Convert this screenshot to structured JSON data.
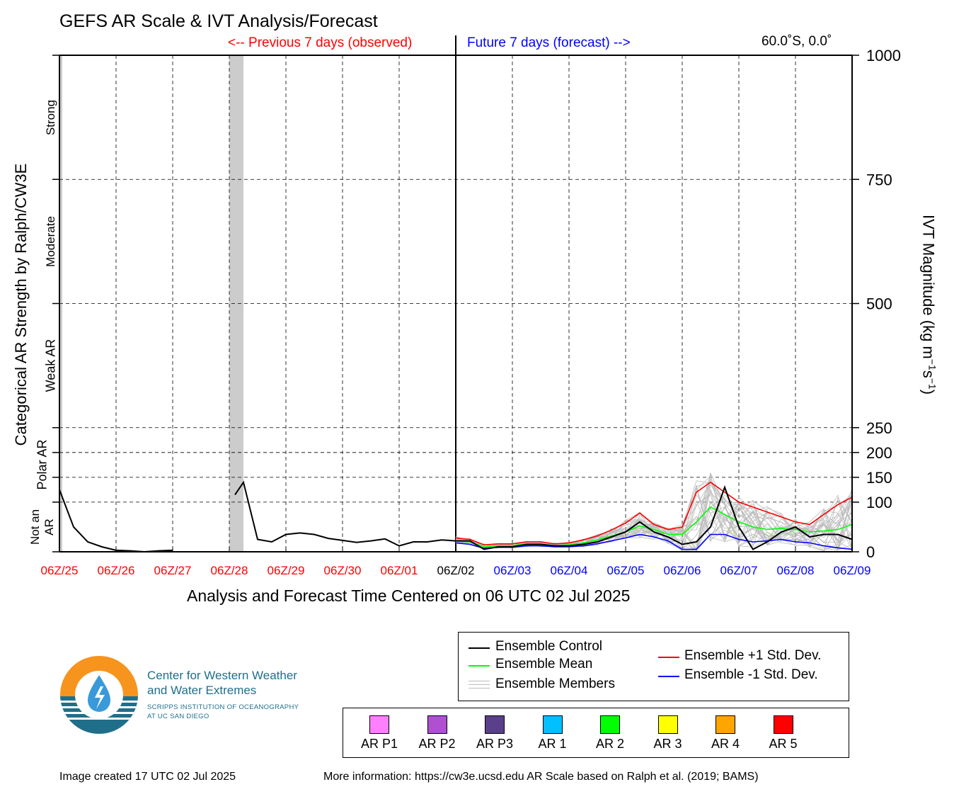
{
  "title": "GEFS AR Scale & IVT Analysis/Forecast",
  "prev_label": "<-- Previous 7 days (observed)",
  "future_label": "Future 7 days (forecast) -->",
  "location": "60.0˚S, 0.0˚",
  "chart_data": {
    "type": "line",
    "xlabel": "Analysis and Forecast Time Centered on 06 UTC 02 Jul 2025",
    "ylabel_left": "Categorical AR Strength by Ralph/CW3E",
    "ylabel_right": "IVT Magnitude (kg m−1s−1)",
    "ylim": [
      0,
      1000
    ],
    "y_ticks": [
      0,
      100,
      150,
      200,
      250,
      500,
      750,
      1000
    ],
    "x_range_days": [
      -7,
      7
    ],
    "x_ticks": [
      {
        "label": "06Z/25",
        "color": "#ff0000"
      },
      {
        "label": "06Z/26",
        "color": "#ff0000"
      },
      {
        "label": "06Z/27",
        "color": "#ff0000"
      },
      {
        "label": "06Z/28",
        "color": "#ff0000"
      },
      {
        "label": "06Z/29",
        "color": "#ff0000"
      },
      {
        "label": "06Z/30",
        "color": "#ff0000"
      },
      {
        "label": "06Z/01",
        "color": "#ff0000"
      },
      {
        "label": "06Z/02",
        "color": "#000000"
      },
      {
        "label": "06Z/03",
        "color": "#0000ff"
      },
      {
        "label": "06Z/04",
        "color": "#0000ff"
      },
      {
        "label": "06Z/05",
        "color": "#0000ff"
      },
      {
        "label": "06Z/06",
        "color": "#0000ff"
      },
      {
        "label": "06Z/07",
        "color": "#0000ff"
      },
      {
        "label": "06Z/08",
        "color": "#0000ff"
      },
      {
        "label": "06Z/09",
        "color": "#0000ff"
      }
    ],
    "categories": [
      {
        "label": "Not an AR",
        "from": 0,
        "to": 100
      },
      {
        "label": "Polar AR",
        "from": 100,
        "to": 250
      },
      {
        "label": "Weak AR",
        "from": 250,
        "to": 500
      },
      {
        "label": "Moderate",
        "from": 500,
        "to": 750
      },
      {
        "label": "Strong",
        "from": 750,
        "to": 1000
      }
    ],
    "ar_shading": [
      {
        "from": -7.0,
        "to": -6.95
      },
      {
        "from": -4.0,
        "to": -3.75
      }
    ],
    "observed": [
      [
        [
          -7.0,
          125
        ],
        [
          -6.75,
          50
        ],
        [
          -6.5,
          20
        ],
        [
          -6.25,
          10
        ],
        [
          -6.0,
          3
        ],
        [
          -5.75,
          2
        ],
        [
          -5.5,
          0
        ],
        [
          -5.25,
          2
        ],
        [
          -5.0,
          3
        ]
      ],
      [
        [
          -3.9,
          115
        ],
        [
          -3.75,
          140
        ],
        [
          -3.5,
          25
        ],
        [
          -3.25,
          20
        ],
        [
          -3.0,
          35
        ],
        [
          -2.75,
          38
        ],
        [
          -2.5,
          35
        ],
        [
          -2.25,
          27
        ],
        [
          -2.0,
          23
        ],
        [
          -1.75,
          19
        ],
        [
          -1.5,
          22
        ],
        [
          -1.25,
          26
        ],
        [
          -1.0,
          12
        ],
        [
          -0.75,
          20
        ],
        [
          -0.5,
          20
        ],
        [
          -0.25,
          24
        ],
        [
          0,
          22
        ]
      ]
    ],
    "series": [
      {
        "name": "Ensemble Control",
        "color": "#000000",
        "x": [
          0,
          0.25,
          0.5,
          0.75,
          1.0,
          1.25,
          1.5,
          1.75,
          2.0,
          2.25,
          2.5,
          2.75,
          3.0,
          3.25,
          3.5,
          3.75,
          4.0,
          4.25,
          4.5,
          4.75,
          5.0,
          5.25,
          5.5,
          5.75,
          6.0,
          6.25,
          6.5,
          6.75,
          7.0
        ],
        "y": [
          22,
          22,
          5,
          10,
          10,
          15,
          15,
          12,
          12,
          15,
          20,
          30,
          40,
          60,
          40,
          30,
          15,
          20,
          50,
          130,
          50,
          5,
          20,
          40,
          50,
          30,
          35,
          35,
          25
        ]
      },
      {
        "name": "Ensemble Mean",
        "color": "#00ff00",
        "x": [
          0,
          0.25,
          0.5,
          0.75,
          1.0,
          1.25,
          1.5,
          1.75,
          2.0,
          2.25,
          2.5,
          2.75,
          3.0,
          3.25,
          3.5,
          3.75,
          4.0,
          4.25,
          4.5,
          4.75,
          5.0,
          5.25,
          5.5,
          5.75,
          6.0,
          6.25,
          6.5,
          6.75,
          7.0
        ],
        "y": [
          22,
          20,
          10,
          12,
          12,
          16,
          16,
          12,
          14,
          18,
          24,
          32,
          40,
          52,
          45,
          35,
          35,
          60,
          90,
          75,
          60,
          50,
          45,
          47,
          45,
          40,
          42,
          45,
          55
        ]
      },
      {
        "name": "Ensemble +1 Std. Dev.",
        "color": "#ff0000",
        "x": [
          0,
          0.25,
          0.5,
          0.75,
          1.0,
          1.25,
          1.5,
          1.75,
          2.0,
          2.25,
          2.5,
          2.75,
          3.0,
          3.25,
          3.5,
          3.75,
          4.0,
          4.25,
          4.5,
          4.75,
          5.0,
          5.25,
          5.5,
          5.75,
          6.0,
          6.25,
          6.5,
          6.75,
          7.0
        ],
        "y": [
          28,
          25,
          14,
          16,
          16,
          20,
          20,
          16,
          18,
          24,
          32,
          44,
          58,
          78,
          55,
          45,
          50,
          120,
          140,
          120,
          100,
          90,
          80,
          70,
          60,
          55,
          75,
          95,
          110
        ]
      },
      {
        "name": "Ensemble -1 Std. Dev.",
        "color": "#0000ff",
        "x": [
          0,
          0.25,
          0.5,
          0.75,
          1.0,
          1.25,
          1.5,
          1.75,
          2.0,
          2.25,
          2.5,
          2.75,
          3.0,
          3.25,
          3.5,
          3.75,
          4.0,
          4.25,
          4.5,
          4.75,
          5.0,
          5.25,
          5.5,
          5.75,
          6.0,
          6.25,
          6.5,
          6.75,
          7.0
        ],
        "y": [
          18,
          15,
          7,
          9,
          9,
          12,
          12,
          10,
          10,
          12,
          16,
          22,
          28,
          35,
          30,
          22,
          5,
          5,
          35,
          35,
          25,
          20,
          22,
          25,
          20,
          18,
          12,
          8,
          5
        ]
      }
    ],
    "members_name": "Ensemble Members",
    "members_color": "#bbbbbb"
  },
  "legend": {
    "control": "Ensemble Control",
    "mean": "Ensemble Mean",
    "members": "Ensemble Members",
    "plus_sd": "Ensemble +1 Std. Dev.",
    "minus_sd": "Ensemble -1 Std. Dev."
  },
  "ar_scale": [
    {
      "label": "AR P1",
      "color": "#ff80ff"
    },
    {
      "label": "AR P2",
      "color": "#b050d0"
    },
    {
      "label": "AR P3",
      "color": "#5a3f8a"
    },
    {
      "label": "AR 1",
      "color": "#00c0ff"
    },
    {
      "label": "AR 2",
      "color": "#00ff00"
    },
    {
      "label": "AR 3",
      "color": "#ffff00"
    },
    {
      "label": "AR 4",
      "color": "#ffa500"
    },
    {
      "label": "AR 5",
      "color": "#ff0000"
    }
  ],
  "logo": {
    "name_line1": "Center for Western Weather",
    "name_line2": "and Water Extremes",
    "sub_line1": "SCRIPPS INSTITUTION OF OCEANOGRAPHY",
    "sub_line2": "AT UC SAN DIEGO"
  },
  "footer": {
    "created": "Image created 17 UTC 02 Jul 2025",
    "more_info": "More information: https://cw3e.ucsd.edu AR Scale based on Ralph et al. (2019; BAMS)"
  }
}
